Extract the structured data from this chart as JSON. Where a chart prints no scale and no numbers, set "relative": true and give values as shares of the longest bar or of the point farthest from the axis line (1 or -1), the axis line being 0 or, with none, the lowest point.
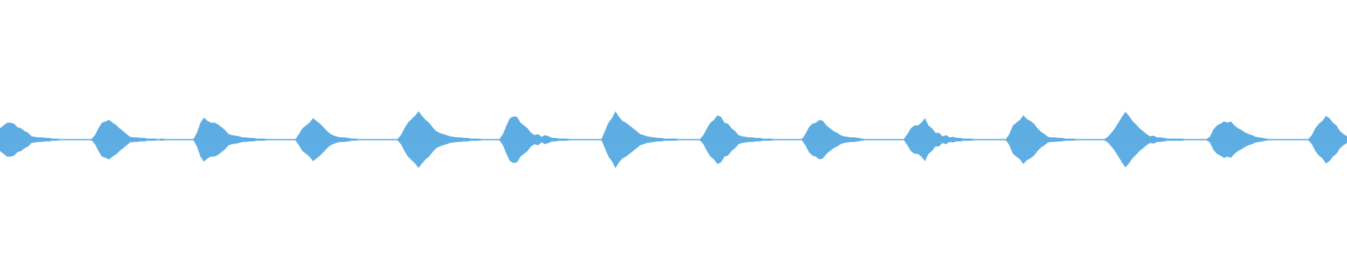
{
  "chart_data": {
    "type": "area",
    "relative": true,
    "categories": [
      null,
      null,
      null,
      null,
      null,
      null,
      null,
      null,
      null,
      null,
      null,
      null,
      null,
      null,
      null,
      null,
      null,
      null,
      null,
      null,
      null,
      null,
      null,
      null,
      null,
      null,
      null,
      null,
      null,
      null,
      null,
      null,
      null,
      null,
      null,
      null,
      null,
      null,
      null,
      null,
      null,
      null,
      null,
      null,
      null,
      null,
      null,
      null,
      null,
      null,
      null,
      null,
      null,
      null,
      null,
      null,
      null,
      null,
      null,
      null,
      null,
      null,
      null,
      null,
      null,
      null,
      null,
      null,
      null,
      null,
      null,
      null,
      null,
      null,
      null,
      null,
      null,
      null,
      null,
      null,
      null,
      null,
      null,
      null,
      null,
      null,
      null,
      null,
      null,
      null,
      null,
      null,
      null,
      null,
      null,
      null,
      null,
      null,
      null,
      null,
      null,
      null,
      null,
      null,
      null,
      null,
      null,
      null,
      null,
      null,
      null,
      null,
      null,
      null,
      null,
      null,
      null,
      null,
      null,
      null,
      null,
      null,
      null,
      null,
      null,
      null,
      null,
      null,
      null,
      null,
      null,
      null,
      null,
      null,
      null,
      null,
      null,
      null,
      null,
      null,
      null,
      null,
      null,
      null,
      null,
      null,
      null,
      null,
      null,
      null,
      null,
      null,
      null,
      null,
      null,
      null,
      null,
      null,
      null,
      null,
      null,
      null,
      null,
      null,
      null,
      null,
      null,
      null,
      null,
      null,
      null,
      null,
      null,
      null,
      null,
      null,
      null,
      null,
      null,
      null,
      null,
      null,
      null,
      null,
      null,
      null,
      null,
      null,
      null,
      null,
      null,
      null,
      null,
      null,
      null,
      null,
      null,
      null,
      null,
      null,
      null,
      null,
      null,
      null,
      null,
      null,
      null,
      null,
      null,
      null,
      null,
      null,
      null,
      null,
      null,
      null,
      null,
      null,
      null,
      null,
      null,
      null,
      null,
      null,
      null,
      null,
      null,
      null,
      null,
      null,
      null,
      null,
      null,
      null,
      null,
      null,
      null,
      null,
      null,
      null,
      null,
      null,
      null,
      null,
      null,
      null,
      null,
      null,
      null,
      null,
      null,
      null,
      null,
      null,
      null,
      null,
      null,
      null,
      null,
      null,
      null,
      null,
      null,
      null,
      null,
      null,
      null,
      null,
      null,
      null,
      null,
      null,
      null,
      null,
      null,
      null,
      null,
      null,
      null,
      null,
      null,
      null,
      null,
      null,
      null,
      null,
      null,
      null,
      null,
      null,
      null,
      null,
      null,
      null,
      null,
      null,
      null,
      null,
      null,
      null,
      null,
      null,
      null,
      null,
      null,
      null,
      null,
      null,
      null,
      null,
      null,
      null,
      null,
      null,
      null,
      null,
      null,
      null,
      null,
      null,
      null,
      null,
      null,
      null,
      null,
      null,
      null,
      null,
      null,
      null,
      null,
      null,
      null,
      null,
      null,
      null,
      null,
      null,
      null,
      null,
      null,
      null,
      null,
      null,
      null,
      null,
      null,
      null,
      null,
      null,
      null,
      null,
      null,
      null,
      null,
      null,
      null,
      null,
      null,
      null,
      null,
      null,
      null,
      null,
      null,
      null,
      null,
      null,
      null,
      null,
      null,
      null,
      null,
      null,
      null,
      null,
      null,
      null,
      null,
      null,
      null,
      null,
      null,
      null
    ],
    "ref_lines": [
      {
        "axis": "y",
        "value": 0,
        "color": "#5dade2"
      }
    ],
    "series": [
      {
        "color": "#5dade2",
        "values": [
          0.4,
          0.5,
          0.6,
          0.6,
          0.56,
          0.44,
          0.4,
          0.3,
          0.24,
          0.12,
          0.1,
          0.08,
          0.08,
          0.06,
          0.06,
          0.04,
          0.04,
          0.02,
          0.02,
          0.02,
          0.02,
          0.02,
          0.02,
          0.02,
          0.02,
          0.02,
          0.02,
          0.16,
          0.4,
          0.6,
          0.64,
          0.7,
          0.6,
          0.52,
          0.4,
          0.3,
          0.2,
          0.1,
          0.08,
          0.08,
          0.06,
          0.06,
          0.04,
          0.04,
          0.04,
          0.02,
          0.04,
          0.02,
          0.02,
          0.02,
          0.02,
          0.02,
          0.02,
          0.02,
          0.02,
          0.02,
          0.24,
          0.6,
          0.78,
          0.66,
          0.6,
          0.6,
          0.54,
          0.44,
          0.34,
          0.2,
          0.16,
          0.14,
          0.12,
          0.08,
          0.08,
          0.06,
          0.06,
          0.04,
          0.04,
          0.04,
          0.02,
          0.02,
          0.02,
          0.02,
          0.02,
          0.02,
          0.02,
          0.02,
          0.02,
          0.2,
          0.4,
          0.5,
          0.6,
          0.76,
          0.66,
          0.56,
          0.44,
          0.3,
          0.2,
          0.14,
          0.1,
          0.08,
          0.08,
          0.06,
          0.04,
          0.04,
          0.02,
          0.02,
          0.02,
          0.02,
          0.02,
          0.02,
          0.02,
          0.02,
          0.02,
          0.02,
          0.02,
          0.02,
          0.16,
          0.4,
          0.6,
          0.72,
          0.84,
          1.0,
          0.84,
          0.7,
          0.6,
          0.44,
          0.3,
          0.24,
          0.2,
          0.16,
          0.12,
          0.1,
          0.08,
          0.08,
          0.06,
          0.06,
          0.04,
          0.04,
          0.04,
          0.02,
          0.02,
          0.02,
          0.02,
          0.02,
          0.02,
          0.2,
          0.5,
          0.76,
          0.82,
          0.8,
          0.6,
          0.5,
          0.4,
          0.24,
          0.16,
          0.2,
          0.1,
          0.16,
          0.12,
          0.06,
          0.06,
          0.04,
          0.04,
          0.04,
          0.02,
          0.02,
          0.02,
          0.02,
          0.02,
          0.02,
          0.02,
          0.02,
          0.02,
          0.02,
          0.3,
          0.6,
          0.76,
          1.0,
          0.8,
          0.66,
          0.6,
          0.5,
          0.4,
          0.3,
          0.2,
          0.16,
          0.12,
          0.1,
          0.08,
          0.06,
          0.06,
          0.04,
          0.04,
          0.04,
          0.04,
          0.02,
          0.02,
          0.02,
          0.02,
          0.02,
          0.02,
          0.02,
          0.16,
          0.4,
          0.6,
          0.7,
          0.86,
          0.8,
          0.6,
          0.56,
          0.4,
          0.3,
          0.16,
          0.12,
          0.1,
          0.08,
          0.08,
          0.06,
          0.06,
          0.04,
          0.04,
          0.04,
          0.02,
          0.02,
          0.02,
          0.02,
          0.02,
          0.02,
          0.02,
          0.02,
          0.02,
          0.2,
          0.44,
          0.56,
          0.6,
          0.7,
          0.66,
          0.5,
          0.4,
          0.3,
          0.24,
          0.16,
          0.12,
          0.1,
          0.08,
          0.08,
          0.06,
          0.04,
          0.02,
          0.02,
          0.02,
          0.02,
          0.02,
          0.02,
          0.02,
          0.02,
          0.02,
          0.02,
          0.02,
          0.02,
          0.2,
          0.4,
          0.5,
          0.5,
          0.6,
          0.76,
          0.5,
          0.4,
          0.24,
          0.24,
          0.12,
          0.16,
          0.08,
          0.1,
          0.06,
          0.06,
          0.04,
          0.04,
          0.04,
          0.02,
          0.02,
          0.02,
          0.02,
          0.02,
          0.02,
          0.02,
          0.02,
          0.02,
          0.02,
          0.2,
          0.5,
          0.6,
          0.7,
          0.86,
          0.72,
          0.66,
          0.56,
          0.4,
          0.28,
          0.2,
          0.1,
          0.08,
          0.08,
          0.06,
          0.06,
          0.04,
          0.04,
          0.04,
          0.02,
          0.02,
          0.02,
          0.02,
          0.02,
          0.02,
          0.02,
          0.02,
          0.02,
          0.1,
          0.24,
          0.4,
          0.6,
          0.8,
          0.98,
          0.84,
          0.66,
          0.54,
          0.4,
          0.3,
          0.2,
          0.12,
          0.14,
          0.08,
          0.08,
          0.06,
          0.04,
          0.04,
          0.04,
          0.04,
          0.04,
          0.02,
          0.02,
          0.02,
          0.02,
          0.02,
          0.02,
          0.02,
          0.1,
          0.36,
          0.5,
          0.56,
          0.64,
          0.6,
          0.64,
          0.5,
          0.4,
          0.34,
          0.26,
          0.2,
          0.16,
          0.1,
          0.08,
          0.06,
          0.04,
          0.02,
          0.02,
          0.02,
          0.02,
          0.02,
          0.02,
          0.02,
          0.02,
          0.02,
          0.02,
          0.02,
          0.02,
          0.16,
          0.4,
          0.56,
          0.66,
          0.84,
          0.76,
          0.6,
          0.5,
          0.3,
          0.2,
          0.12
        ]
      },
      {
        "color": "#5eaee3",
        "values": [
          -0.4,
          -0.5,
          -0.6,
          -0.6,
          -0.56,
          -0.44,
          -0.4,
          -0.3,
          -0.24,
          -0.12,
          -0.1,
          -0.08,
          -0.08,
          -0.06,
          -0.06,
          -0.04,
          -0.04,
          -0.02,
          -0.02,
          -0.02,
          -0.02,
          -0.02,
          -0.02,
          -0.02,
          -0.02,
          -0.02,
          -0.02,
          -0.16,
          -0.4,
          -0.6,
          -0.64,
          -0.7,
          -0.6,
          -0.52,
          -0.4,
          -0.3,
          -0.2,
          -0.1,
          -0.08,
          -0.08,
          -0.06,
          -0.06,
          -0.04,
          -0.04,
          -0.04,
          -0.02,
          -0.04,
          -0.02,
          -0.02,
          -0.02,
          -0.02,
          -0.02,
          -0.02,
          -0.02,
          -0.02,
          -0.02,
          -0.24,
          -0.6,
          -0.78,
          -0.66,
          -0.6,
          -0.6,
          -0.54,
          -0.44,
          -0.34,
          -0.2,
          -0.16,
          -0.14,
          -0.12,
          -0.08,
          -0.08,
          -0.06,
          -0.06,
          -0.04,
          -0.04,
          -0.04,
          -0.02,
          -0.02,
          -0.02,
          -0.02,
          -0.02,
          -0.02,
          -0.02,
          -0.02,
          -0.02,
          -0.2,
          -0.4,
          -0.5,
          -0.6,
          -0.76,
          -0.66,
          -0.56,
          -0.44,
          -0.3,
          -0.2,
          -0.14,
          -0.1,
          -0.08,
          -0.08,
          -0.06,
          -0.04,
          -0.04,
          -0.02,
          -0.02,
          -0.02,
          -0.02,
          -0.02,
          -0.02,
          -0.02,
          -0.02,
          -0.02,
          -0.02,
          -0.02,
          -0.02,
          -0.16,
          -0.4,
          -0.6,
          -0.72,
          -0.84,
          -1.0,
          -0.84,
          -0.7,
          -0.6,
          -0.44,
          -0.3,
          -0.24,
          -0.2,
          -0.16,
          -0.12,
          -0.1,
          -0.08,
          -0.08,
          -0.06,
          -0.06,
          -0.04,
          -0.04,
          -0.04,
          -0.02,
          -0.02,
          -0.02,
          -0.02,
          -0.02,
          -0.02,
          -0.2,
          -0.5,
          -0.76,
          -0.82,
          -0.8,
          -0.6,
          -0.5,
          -0.4,
          -0.24,
          -0.16,
          -0.2,
          -0.1,
          -0.16,
          -0.12,
          -0.06,
          -0.06,
          -0.04,
          -0.04,
          -0.04,
          -0.02,
          -0.02,
          -0.02,
          -0.02,
          -0.02,
          -0.02,
          -0.02,
          -0.02,
          -0.02,
          -0.02,
          -0.3,
          -0.6,
          -0.76,
          -1.0,
          -0.8,
          -0.66,
          -0.6,
          -0.5,
          -0.4,
          -0.3,
          -0.2,
          -0.16,
          -0.12,
          -0.1,
          -0.08,
          -0.06,
          -0.06,
          -0.04,
          -0.04,
          -0.04,
          -0.04,
          -0.02,
          -0.02,
          -0.02,
          -0.02,
          -0.02,
          -0.02,
          -0.02,
          -0.16,
          -0.4,
          -0.6,
          -0.7,
          -0.86,
          -0.8,
          -0.6,
          -0.56,
          -0.4,
          -0.3,
          -0.16,
          -0.12,
          -0.1,
          -0.08,
          -0.08,
          -0.06,
          -0.06,
          -0.04,
          -0.04,
          -0.04,
          -0.02,
          -0.02,
          -0.02,
          -0.02,
          -0.02,
          -0.02,
          -0.02,
          -0.02,
          -0.02,
          -0.2,
          -0.44,
          -0.56,
          -0.6,
          -0.7,
          -0.66,
          -0.5,
          -0.4,
          -0.3,
          -0.24,
          -0.16,
          -0.12,
          -0.1,
          -0.08,
          -0.08,
          -0.06,
          -0.04,
          -0.02,
          -0.02,
          -0.02,
          -0.02,
          -0.02,
          -0.02,
          -0.02,
          -0.02,
          -0.02,
          -0.02,
          -0.02,
          -0.02,
          -0.2,
          -0.4,
          -0.5,
          -0.5,
          -0.6,
          -0.76,
          -0.5,
          -0.4,
          -0.24,
          -0.24,
          -0.12,
          -0.16,
          -0.08,
          -0.1,
          -0.06,
          -0.06,
          -0.04,
          -0.04,
          -0.04,
          -0.02,
          -0.02,
          -0.02,
          -0.02,
          -0.02,
          -0.02,
          -0.02,
          -0.02,
          -0.02,
          -0.02,
          -0.2,
          -0.5,
          -0.6,
          -0.7,
          -0.86,
          -0.72,
          -0.66,
          -0.56,
          -0.4,
          -0.28,
          -0.2,
          -0.1,
          -0.08,
          -0.08,
          -0.06,
          -0.06,
          -0.04,
          -0.04,
          -0.04,
          -0.02,
          -0.02,
          -0.02,
          -0.02,
          -0.02,
          -0.02,
          -0.02,
          -0.02,
          -0.02,
          -0.1,
          -0.24,
          -0.4,
          -0.6,
          -0.8,
          -0.98,
          -0.84,
          -0.66,
          -0.54,
          -0.4,
          -0.3,
          -0.2,
          -0.12,
          -0.14,
          -0.08,
          -0.08,
          -0.06,
          -0.04,
          -0.04,
          -0.04,
          -0.04,
          -0.04,
          -0.02,
          -0.02,
          -0.02,
          -0.02,
          -0.02,
          -0.02,
          -0.02,
          -0.1,
          -0.36,
          -0.5,
          -0.56,
          -0.64,
          -0.6,
          -0.64,
          -0.5,
          -0.4,
          -0.34,
          -0.26,
          -0.2,
          -0.16,
          -0.1,
          -0.08,
          -0.06,
          -0.04,
          -0.02,
          -0.02,
          -0.02,
          -0.02,
          -0.02,
          -0.02,
          -0.02,
          -0.02,
          -0.02,
          -0.02,
          -0.02,
          -0.02,
          -0.16,
          -0.4,
          -0.56,
          -0.66,
          -0.84,
          -0.76,
          -0.6,
          -0.5,
          -0.3,
          -0.2,
          -0.12
        ]
      }
    ]
  }
}
